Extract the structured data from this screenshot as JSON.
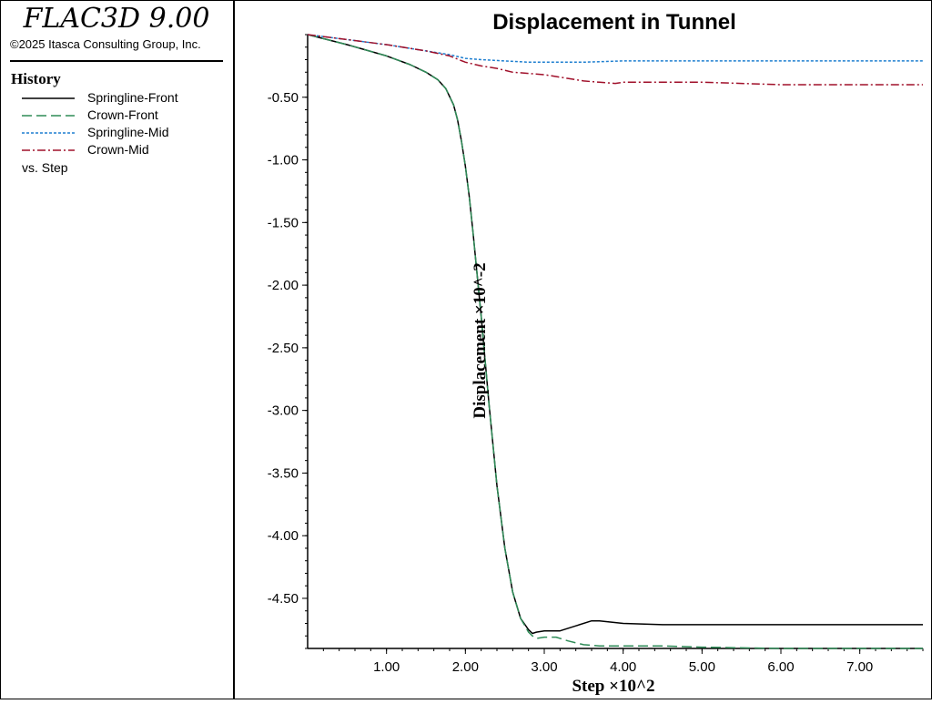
{
  "app": {
    "title": "FLAC3D 9.00",
    "copyright": "©2025 Itasca Consulting Group, Inc."
  },
  "legend": {
    "title": "History",
    "items": [
      {
        "label": "Springline-Front",
        "color": "#000000",
        "dash": "solid"
      },
      {
        "label": "Crown-Front",
        "color": "#2e8b57",
        "dash": "long-dash"
      },
      {
        "label": "Springline-Mid",
        "color": "#1e7fd0",
        "dash": "dotted"
      },
      {
        "label": "Crown-Mid",
        "color": "#a0102a",
        "dash": "dash-dot"
      }
    ],
    "vs_label": "vs. Step"
  },
  "chart_data": {
    "type": "line",
    "title": "Displacement in Tunnel",
    "xlabel": "Step ×10^2",
    "ylabel": "Displacement ×10^-2",
    "xlim": [
      0.0,
      7.8
    ],
    "ylim": [
      -4.9,
      0.0
    ],
    "x_ticks": [
      1.0,
      2.0,
      3.0,
      4.0,
      5.0,
      6.0,
      7.0
    ],
    "x_tick_labels": [
      "1.00",
      "2.00",
      "3.00",
      "4.00",
      "5.00",
      "6.00",
      "7.00"
    ],
    "y_ticks": [
      -0.5,
      -1.0,
      -1.5,
      -2.0,
      -2.5,
      -3.0,
      -3.5,
      -4.0,
      -4.5
    ],
    "y_tick_labels": [
      "-0.50",
      "-1.00",
      "-1.50",
      "-2.00",
      "-2.50",
      "-3.00",
      "-3.50",
      "-4.00",
      "-4.50"
    ],
    "grid": false,
    "series": [
      {
        "name": "Springline-Front",
        "x": [
          0,
          0.5,
          1.0,
          1.3,
          1.5,
          1.65,
          1.75,
          1.85,
          1.9,
          1.95,
          2.0,
          2.05,
          2.1,
          2.2,
          2.3,
          2.4,
          2.5,
          2.6,
          2.7,
          2.8,
          2.85,
          2.9,
          3.0,
          3.2,
          3.4,
          3.6,
          3.7,
          4.0,
          4.5,
          5.0,
          6.0,
          7.0,
          7.8
        ],
        "y": [
          0,
          -0.08,
          -0.17,
          -0.24,
          -0.3,
          -0.36,
          -0.43,
          -0.56,
          -0.68,
          -0.85,
          -1.05,
          -1.3,
          -1.6,
          -2.25,
          -2.95,
          -3.6,
          -4.1,
          -4.45,
          -4.66,
          -4.75,
          -4.78,
          -4.77,
          -4.76,
          -4.76,
          -4.72,
          -4.68,
          -4.68,
          -4.7,
          -4.71,
          -4.71,
          -4.71,
          -4.71,
          -4.71
        ]
      },
      {
        "name": "Crown-Front",
        "x": [
          0,
          0.5,
          1.0,
          1.3,
          1.5,
          1.65,
          1.75,
          1.85,
          1.9,
          1.95,
          2.0,
          2.05,
          2.1,
          2.2,
          2.3,
          2.4,
          2.5,
          2.6,
          2.7,
          2.8,
          2.85,
          2.9,
          3.0,
          3.15,
          3.3,
          3.5,
          3.7,
          4.0,
          4.5,
          5.0,
          6.0,
          7.0,
          7.8
        ],
        "y": [
          0,
          -0.08,
          -0.17,
          -0.24,
          -0.3,
          -0.36,
          -0.43,
          -0.56,
          -0.68,
          -0.85,
          -1.05,
          -1.3,
          -1.6,
          -2.25,
          -2.95,
          -3.6,
          -4.1,
          -4.45,
          -4.66,
          -4.77,
          -4.8,
          -4.82,
          -4.81,
          -4.81,
          -4.84,
          -4.87,
          -4.88,
          -4.88,
          -4.88,
          -4.89,
          -4.9,
          -4.9,
          -4.9
        ]
      },
      {
        "name": "Springline-Mid",
        "x": [
          0,
          0.5,
          1.0,
          1.5,
          1.8,
          2.0,
          2.2,
          2.5,
          2.8,
          3.0,
          3.5,
          4.0,
          5.0,
          6.0,
          7.0,
          7.8
        ],
        "y": [
          0,
          -0.04,
          -0.08,
          -0.13,
          -0.16,
          -0.19,
          -0.2,
          -0.21,
          -0.22,
          -0.22,
          -0.22,
          -0.21,
          -0.21,
          -0.21,
          -0.21,
          -0.21
        ]
      },
      {
        "name": "Crown-Mid",
        "x": [
          0,
          0.5,
          1.0,
          1.5,
          1.8,
          2.0,
          2.2,
          2.4,
          2.6,
          2.8,
          3.0,
          3.3,
          3.5,
          3.7,
          3.9,
          4.0,
          4.4,
          5.0,
          5.5,
          6.0,
          7.0,
          7.8
        ],
        "y": [
          0,
          -0.04,
          -0.08,
          -0.13,
          -0.17,
          -0.22,
          -0.25,
          -0.27,
          -0.3,
          -0.31,
          -0.32,
          -0.35,
          -0.37,
          -0.38,
          -0.39,
          -0.38,
          -0.38,
          -0.38,
          -0.39,
          -0.4,
          -0.4,
          -0.4
        ]
      }
    ]
  }
}
